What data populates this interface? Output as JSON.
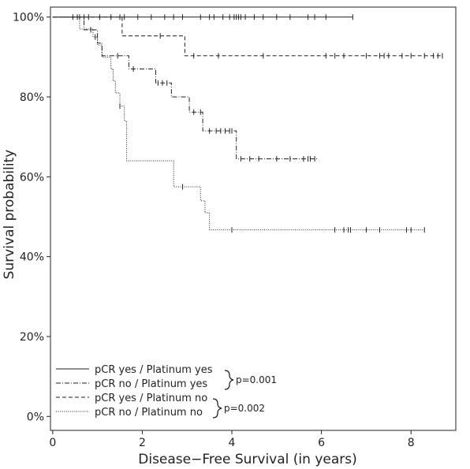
{
  "chart_data": {
    "type": "line",
    "subtype": "kaplan-meier",
    "xlabel": "Disease−Free Survival (in years)",
    "ylabel": "Survival probability",
    "xlim": [
      0,
      9
    ],
    "ylim": [
      0,
      1
    ],
    "x_ticks": [
      "0",
      "2",
      "4",
      "6",
      "8"
    ],
    "y_ticks": [
      "0%",
      "20%",
      "40%",
      "60%",
      "80%",
      "100%"
    ],
    "grid": false,
    "legend_position": "bottom-left",
    "series": [
      {
        "name": "pCR yes / Platinum yes",
        "line_style": "solid",
        "steps": [
          [
            0,
            1.0
          ],
          [
            6.7,
            1.0
          ]
        ],
        "censor_times": [
          0.45,
          0.6,
          0.8,
          1.3,
          1.5,
          1.6,
          1.9,
          2.2,
          2.5,
          2.7,
          2.9,
          3.3,
          3.5,
          3.6,
          3.8,
          3.95,
          4.05,
          4.1,
          4.15,
          4.2,
          4.3,
          4.5,
          4.7,
          5.0,
          5.3,
          5.7,
          5.85,
          6.1,
          6.7
        ]
      },
      {
        "name": "pCR no / Platinum yes",
        "line_style": "dotdash",
        "steps": [
          [
            0,
            1.0
          ],
          [
            0.7,
            0.968
          ],
          [
            1.0,
            0.935
          ],
          [
            1.1,
            0.903
          ],
          [
            1.7,
            0.87
          ],
          [
            2.3,
            0.835
          ],
          [
            2.65,
            0.8
          ],
          [
            2.65,
            0.8
          ],
          [
            3.05,
            0.762
          ],
          [
            3.35,
            0.715
          ],
          [
            4.1,
            0.645
          ],
          [
            5.9,
            0.645
          ]
        ],
        "censor_times": [
          0.85,
          1.45,
          1.8,
          2.35,
          2.45,
          2.55,
          3.15,
          3.3,
          3.5,
          3.65,
          3.75,
          3.85,
          3.95,
          4.0,
          4.2,
          4.4,
          4.6,
          5.0,
          5.3,
          5.6,
          5.7,
          5.75,
          5.85
        ]
      },
      {
        "name": "pCR yes / Platinum no",
        "line_style": "dashed",
        "steps": [
          [
            0,
            1.0
          ],
          [
            1.55,
            0.953
          ],
          [
            2.95,
            0.903
          ],
          [
            8.7,
            0.903
          ]
        ],
        "censor_times": [
          0.55,
          0.7,
          1.05,
          2.4,
          3.15,
          3.7,
          4.7,
          6.1,
          6.3,
          6.5,
          7.0,
          7.3,
          7.4,
          7.5,
          7.8,
          8.0,
          8.3,
          8.5,
          8.6,
          8.7
        ]
      },
      {
        "name": "pCR no / Platinum no",
        "line_style": "dotted",
        "steps": [
          [
            0,
            1.0
          ],
          [
            0.6,
            0.97
          ],
          [
            0.9,
            0.95
          ],
          [
            1.0,
            0.93
          ],
          [
            1.1,
            0.9
          ],
          [
            1.3,
            0.87
          ],
          [
            1.35,
            0.84
          ],
          [
            1.4,
            0.81
          ],
          [
            1.5,
            0.777
          ],
          [
            1.6,
            0.74
          ],
          [
            1.65,
            0.64
          ],
          [
            2.7,
            0.575
          ],
          [
            3.3,
            0.54
          ],
          [
            3.4,
            0.51
          ],
          [
            3.5,
            0.467
          ],
          [
            8.3,
            0.467
          ]
        ],
        "censor_times": [
          0.95,
          1.5,
          2.9,
          4.0,
          6.3,
          6.5,
          6.6,
          6.65,
          7.0,
          7.3,
          7.9,
          8.0,
          8.3
        ]
      }
    ],
    "annotations": [
      {
        "text": "p=0.001",
        "groups": [
          "pCR yes / Platinum yes",
          "pCR no / Platinum yes"
        ]
      },
      {
        "text": "p=0.002",
        "groups": [
          "pCR yes / Platinum no",
          "pCR no / Platinum no"
        ]
      }
    ]
  }
}
